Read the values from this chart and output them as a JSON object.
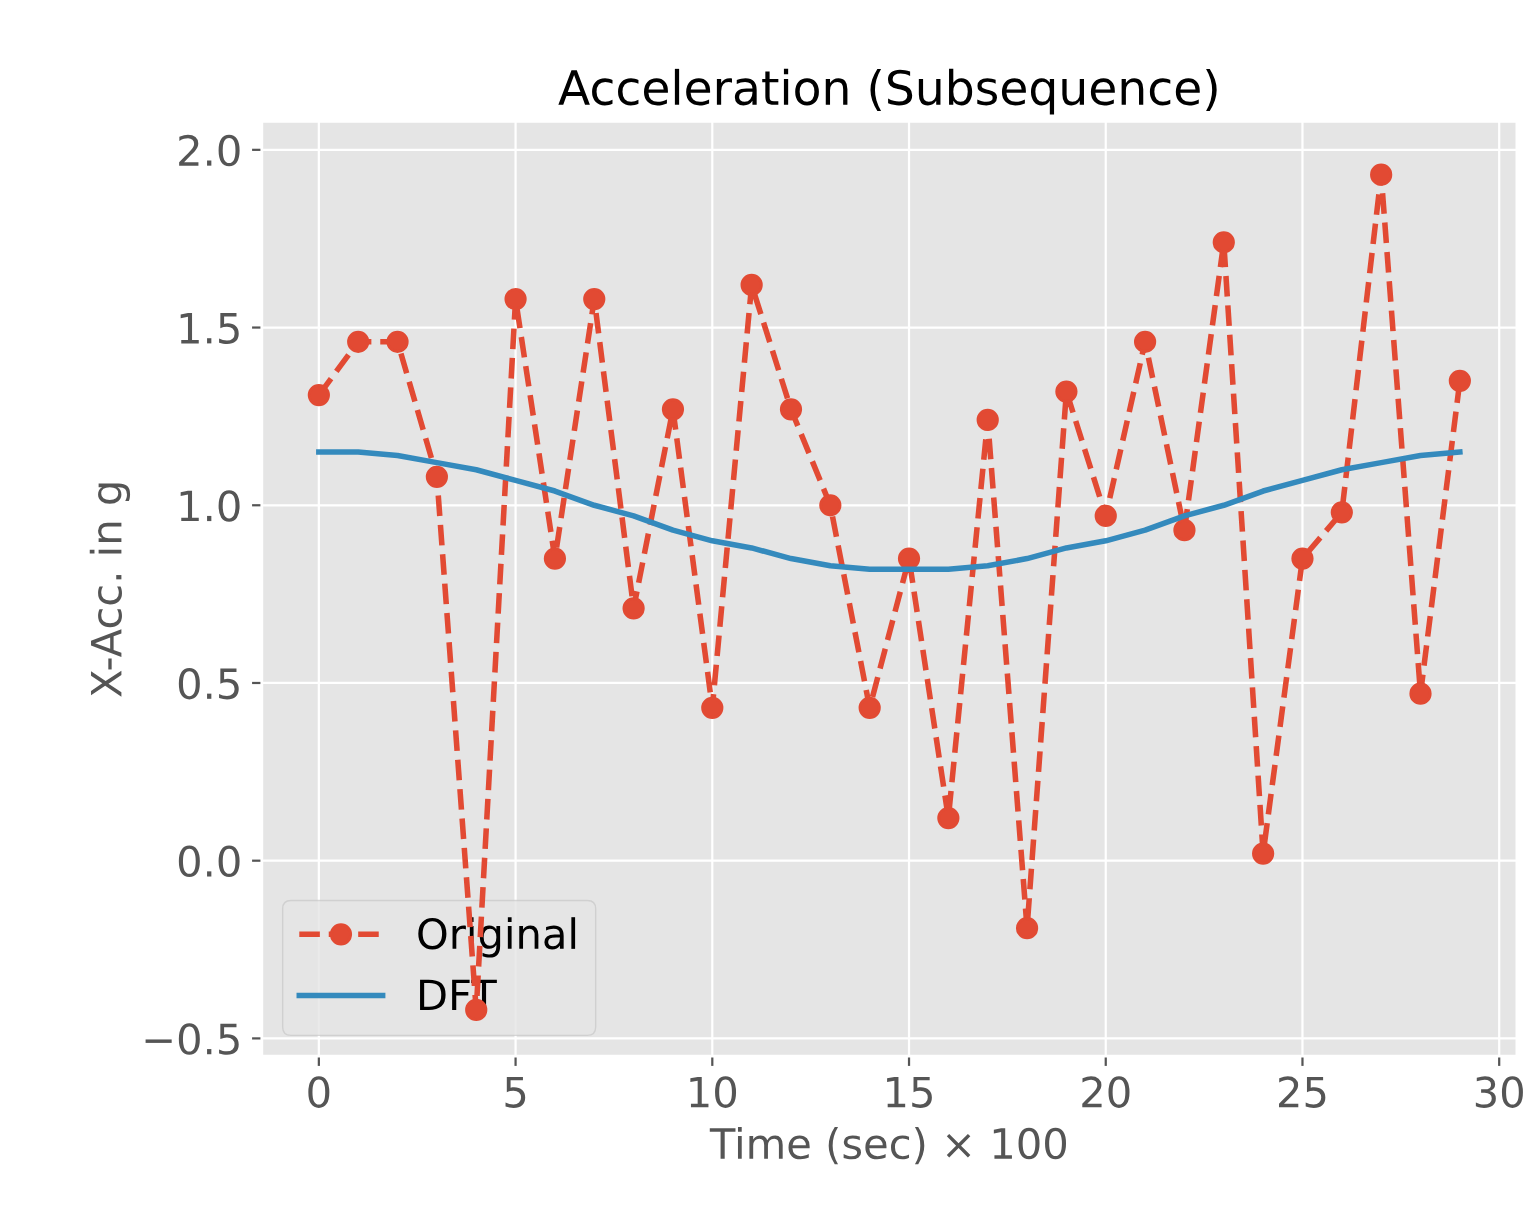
{
  "chart_data": {
    "type": "line",
    "title": "Acceleration (Subsequence)",
    "xlabel": "Time (sec) × 100",
    "ylabel": "X-Acc. in g",
    "x": [
      0,
      1,
      2,
      3,
      4,
      5,
      6,
      7,
      8,
      9,
      10,
      11,
      12,
      13,
      14,
      15,
      16,
      17,
      18,
      19,
      20,
      21,
      22,
      23,
      24,
      25,
      26,
      27,
      28,
      29
    ],
    "series": [
      {
        "name": "Original",
        "color": "#e24a33",
        "marker": "circle",
        "line_style": "dashed",
        "values": [
          1.31,
          1.46,
          1.46,
          1.08,
          -0.42,
          1.58,
          0.85,
          1.58,
          0.71,
          1.27,
          0.43,
          1.62,
          1.27,
          1.0,
          0.43,
          0.85,
          0.12,
          1.24,
          -0.19,
          1.32,
          0.97,
          1.46,
          0.93,
          1.74,
          0.02,
          0.85,
          0.98,
          1.93,
          0.47,
          1.35
        ]
      },
      {
        "name": "DFT",
        "color": "#348abd",
        "marker": "none",
        "line_style": "solid",
        "values": [
          1.15,
          1.15,
          1.14,
          1.12,
          1.1,
          1.07,
          1.04,
          1.0,
          0.97,
          0.93,
          0.9,
          0.88,
          0.85,
          0.83,
          0.82,
          0.82,
          0.82,
          0.83,
          0.85,
          0.88,
          0.9,
          0.93,
          0.97,
          1.0,
          1.04,
          1.07,
          1.1,
          1.12,
          1.14,
          1.15
        ]
      }
    ],
    "xlim": [
      -1.45,
      30.45
    ],
    "ylim": [
      -0.55,
      2.08
    ],
    "xticks": [
      0,
      5,
      10,
      15,
      20,
      25,
      30
    ],
    "yticks": [
      {
        "value": -0.5,
        "label": "−0.5"
      },
      {
        "value": 0.0,
        "label": "0.0"
      },
      {
        "value": 0.5,
        "label": "0.5"
      },
      {
        "value": 1.0,
        "label": "1.0"
      },
      {
        "value": 1.5,
        "label": "1.5"
      },
      {
        "value": 2.0,
        "label": "2.0"
      }
    ],
    "grid": true,
    "legend": "bottom left"
  }
}
